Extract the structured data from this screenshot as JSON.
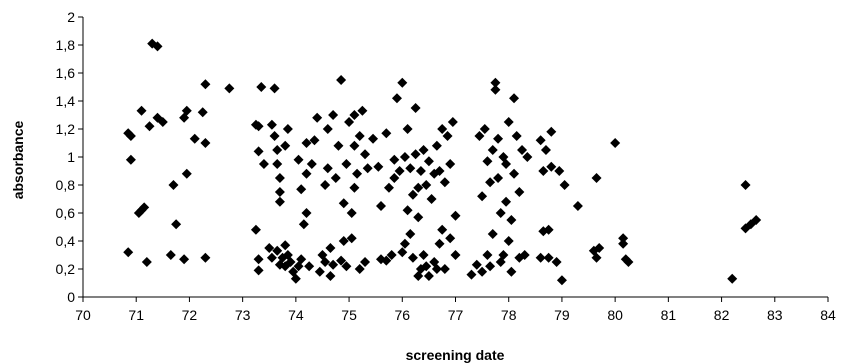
{
  "chart_data": {
    "type": "scatter",
    "title": "",
    "xlabel": "screening date",
    "ylabel": "absorbance",
    "xlim": [
      70,
      84
    ],
    "ylim": [
      0,
      2
    ],
    "x_ticks": [
      "70",
      "71",
      "72",
      "73",
      "74",
      "75",
      "76",
      "77",
      "78",
      "79",
      "80",
      "81",
      "82",
      "83",
      "84"
    ],
    "y_ticks": [
      "0",
      "0,2",
      "0,4",
      "0,6",
      "0,8",
      "1",
      "1,2",
      "1,4",
      "1,6",
      "1,8",
      "2"
    ],
    "grid": false,
    "legend": "none",
    "marker": "diamond",
    "marker_color": "#000000",
    "series": [
      {
        "points": [
          [
            70.85,
            1.17
          ],
          [
            70.9,
            1.15
          ],
          [
            70.9,
            0.98
          ],
          [
            70.85,
            0.32
          ],
          [
            71.05,
            0.6
          ],
          [
            71.1,
            0.62
          ],
          [
            71.15,
            0.64
          ],
          [
            71.1,
            1.33
          ],
          [
            71.2,
            0.25
          ],
          [
            71.25,
            1.22
          ],
          [
            71.3,
            1.81
          ],
          [
            71.4,
            1.79
          ],
          [
            71.4,
            1.28
          ],
          [
            71.5,
            1.25
          ],
          [
            71.65,
            0.3
          ],
          [
            71.7,
            0.8
          ],
          [
            71.75,
            0.52
          ],
          [
            71.9,
            1.28
          ],
          [
            71.95,
            1.33
          ],
          [
            71.9,
            0.27
          ],
          [
            71.95,
            0.88
          ],
          [
            72.1,
            1.13
          ],
          [
            72.25,
            1.32
          ],
          [
            72.3,
            1.52
          ],
          [
            72.3,
            1.1
          ],
          [
            72.3,
            0.28
          ],
          [
            72.75,
            1.49
          ],
          [
            73.25,
            1.23
          ],
          [
            73.3,
            1.22
          ],
          [
            73.35,
            1.5
          ],
          [
            73.3,
            1.04
          ],
          [
            73.25,
            0.48
          ],
          [
            73.3,
            0.27
          ],
          [
            73.3,
            0.19
          ],
          [
            73.4,
            0.95
          ],
          [
            73.5,
            0.35
          ],
          [
            73.55,
            0.28
          ],
          [
            73.55,
            1.23
          ],
          [
            73.6,
            1.49
          ],
          [
            73.6,
            1.15
          ],
          [
            73.65,
            1.05
          ],
          [
            73.65,
            0.95
          ],
          [
            73.7,
            0.85
          ],
          [
            73.7,
            0.68
          ],
          [
            73.7,
            0.75
          ],
          [
            73.65,
            0.33
          ],
          [
            73.7,
            0.23
          ],
          [
            73.75,
            0.28
          ],
          [
            73.8,
            0.22
          ],
          [
            73.8,
            1.08
          ],
          [
            73.85,
            0.3
          ],
          [
            73.8,
            0.37
          ],
          [
            73.85,
            1.2
          ],
          [
            73.9,
            0.25
          ],
          [
            73.95,
            0.18
          ],
          [
            74.0,
            0.13
          ],
          [
            74.05,
            0.22
          ],
          [
            74.1,
            0.27
          ],
          [
            74.05,
            0.98
          ],
          [
            74.1,
            0.77
          ],
          [
            74.15,
            0.52
          ],
          [
            74.2,
            0.6
          ],
          [
            74.2,
            0.88
          ],
          [
            74.2,
            1.1
          ],
          [
            74.25,
            0.22
          ],
          [
            74.3,
            0.95
          ],
          [
            74.35,
            1.12
          ],
          [
            74.4,
            1.28
          ],
          [
            74.45,
            0.18
          ],
          [
            74.5,
            0.3
          ],
          [
            74.55,
            0.25
          ],
          [
            74.55,
            0.8
          ],
          [
            74.6,
            0.92
          ],
          [
            74.6,
            1.2
          ],
          [
            74.65,
            0.35
          ],
          [
            74.65,
            0.15
          ],
          [
            74.7,
            0.23
          ],
          [
            74.7,
            1.3
          ],
          [
            74.75,
            0.85
          ],
          [
            74.8,
            1.08
          ],
          [
            74.85,
            1.55
          ],
          [
            74.85,
            0.26
          ],
          [
            74.9,
            0.4
          ],
          [
            74.9,
            0.67
          ],
          [
            74.95,
            0.22
          ],
          [
            74.95,
            0.95
          ],
          [
            75.0,
            1.25
          ],
          [
            75.05,
            0.42
          ],
          [
            75.05,
            0.6
          ],
          [
            75.1,
            0.78
          ],
          [
            75.1,
            1.08
          ],
          [
            75.1,
            1.3
          ],
          [
            75.15,
            0.88
          ],
          [
            75.2,
            0.2
          ],
          [
            75.2,
            1.15
          ],
          [
            75.25,
            1.33
          ],
          [
            75.3,
            0.25
          ],
          [
            75.3,
            1.02
          ],
          [
            75.35,
            0.92
          ],
          [
            75.45,
            1.13
          ],
          [
            75.55,
            0.93
          ],
          [
            75.6,
            0.65
          ],
          [
            75.6,
            0.27
          ],
          [
            75.7,
            0.26
          ],
          [
            75.7,
            1.17
          ],
          [
            75.75,
            0.78
          ],
          [
            75.8,
            0.3
          ],
          [
            75.85,
            0.85
          ],
          [
            75.85,
            0.98
          ],
          [
            75.9,
            1.42
          ],
          [
            75.95,
            0.9
          ],
          [
            76.0,
            0.32
          ],
          [
            76.0,
            1.53
          ],
          [
            76.05,
            0.38
          ],
          [
            76.05,
            1.0
          ],
          [
            76.1,
            0.62
          ],
          [
            76.1,
            1.2
          ],
          [
            76.15,
            0.45
          ],
          [
            76.15,
            0.92
          ],
          [
            76.2,
            0.28
          ],
          [
            76.2,
            0.73
          ],
          [
            76.25,
            1.02
          ],
          [
            76.25,
            1.35
          ],
          [
            76.3,
            0.57
          ],
          [
            76.3,
            0.78
          ],
          [
            76.3,
            0.15
          ],
          [
            76.35,
            0.2
          ],
          [
            76.35,
            0.9
          ],
          [
            76.4,
            1.05
          ],
          [
            76.4,
            0.3
          ],
          [
            76.45,
            0.22
          ],
          [
            76.45,
            0.8
          ],
          [
            76.5,
            0.15
          ],
          [
            76.5,
            0.97
          ],
          [
            76.55,
            0.7
          ],
          [
            76.6,
            0.25
          ],
          [
            76.6,
            0.88
          ],
          [
            76.65,
            0.2
          ],
          [
            76.65,
            1.08
          ],
          [
            76.7,
            0.38
          ],
          [
            76.7,
            0.9
          ],
          [
            76.75,
            1.2
          ],
          [
            76.75,
            0.48
          ],
          [
            76.8,
            0.2
          ],
          [
            76.8,
            0.82
          ],
          [
            76.85,
            1.15
          ],
          [
            76.9,
            0.42
          ],
          [
            76.9,
            0.95
          ],
          [
            76.95,
            1.25
          ],
          [
            77.0,
            0.3
          ],
          [
            77.0,
            0.58
          ],
          [
            77.3,
            0.16
          ],
          [
            77.4,
            0.23
          ],
          [
            77.45,
            1.15
          ],
          [
            77.5,
            0.72
          ],
          [
            77.5,
            0.18
          ],
          [
            77.55,
            1.2
          ],
          [
            77.6,
            0.3
          ],
          [
            77.6,
            0.97
          ],
          [
            77.65,
            0.82
          ],
          [
            77.65,
            0.22
          ],
          [
            77.7,
            0.45
          ],
          [
            77.7,
            1.05
          ],
          [
            77.75,
            1.53
          ],
          [
            77.75,
            1.48
          ],
          [
            77.8,
            1.13
          ],
          [
            77.8,
            0.85
          ],
          [
            77.85,
            0.25
          ],
          [
            77.85,
            0.6
          ],
          [
            77.9,
            1.0
          ],
          [
            77.9,
            0.3
          ],
          [
            77.95,
            0.68
          ],
          [
            77.95,
            0.95
          ],
          [
            78.0,
            1.25
          ],
          [
            78.0,
            0.4
          ],
          [
            78.05,
            0.55
          ],
          [
            78.05,
            0.18
          ],
          [
            78.1,
            1.42
          ],
          [
            78.1,
            0.88
          ],
          [
            78.15,
            1.15
          ],
          [
            78.2,
            0.28
          ],
          [
            78.2,
            0.75
          ],
          [
            78.25,
            1.05
          ],
          [
            78.3,
            0.3
          ],
          [
            78.35,
            1.0
          ],
          [
            78.6,
            1.12
          ],
          [
            78.6,
            0.28
          ],
          [
            78.65,
            0.47
          ],
          [
            78.65,
            0.9
          ],
          [
            78.7,
            1.05
          ],
          [
            78.75,
            0.28
          ],
          [
            78.75,
            0.48
          ],
          [
            78.8,
            0.93
          ],
          [
            78.8,
            1.18
          ],
          [
            78.9,
            0.25
          ],
          [
            78.95,
            0.9
          ],
          [
            79.0,
            0.12
          ],
          [
            79.05,
            0.8
          ],
          [
            79.3,
            0.65
          ],
          [
            79.6,
            0.33
          ],
          [
            79.65,
            0.85
          ],
          [
            79.65,
            0.28
          ],
          [
            79.7,
            0.35
          ],
          [
            80.0,
            1.1
          ],
          [
            80.15,
            0.42
          ],
          [
            80.15,
            0.38
          ],
          [
            80.2,
            0.27
          ],
          [
            80.25,
            0.25
          ],
          [
            82.2,
            0.13
          ],
          [
            82.45,
            0.8
          ],
          [
            82.45,
            0.49
          ],
          [
            82.55,
            0.52
          ],
          [
            82.65,
            0.55
          ]
        ]
      }
    ]
  }
}
